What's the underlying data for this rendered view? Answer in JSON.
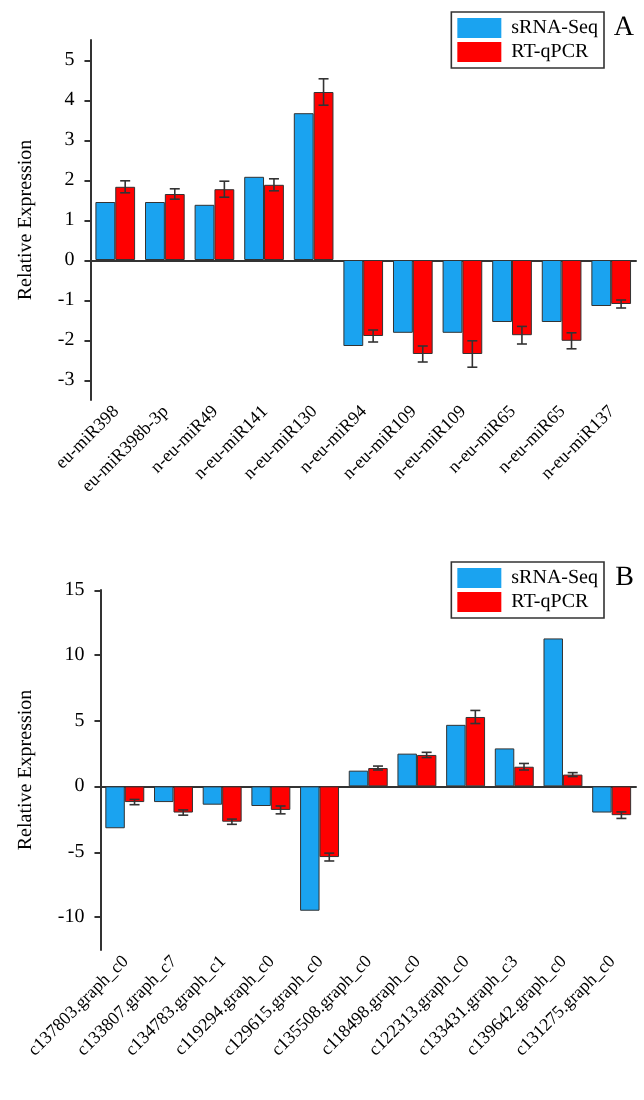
{
  "chart_data": [
    {
      "type": "bar",
      "title": "A",
      "ylabel": "Relative Expression",
      "categories": [
        "eu-miR398",
        "eu-miR398b-3p",
        "n-eu-miR49",
        "n-eu-miR141",
        "n-eu-miR130",
        "n-eu-miR94",
        "n-eu-miR109",
        "n-eu-miR109",
        "n-eu-miR65",
        "n-eu-miR65",
        "n-eu-miR137"
      ],
      "series": [
        {
          "name": "sRNA-Seq",
          "color": "#1aa3f0",
          "values": [
            1.45,
            1.45,
            1.38,
            2.08,
            3.67,
            -2.15,
            -1.82,
            -1.82,
            -1.55,
            -1.55,
            -1.15
          ]
        },
        {
          "name": "RT-qPCR",
          "color": "#ff0000",
          "values": [
            1.83,
            1.65,
            1.77,
            1.88,
            4.2,
            -1.9,
            -2.35,
            -2.35,
            -1.88,
            -2.02,
            -1.1
          ],
          "errors": [
            0.15,
            0.13,
            0.2,
            0.15,
            0.33,
            0.15,
            0.2,
            0.33,
            0.22,
            0.2,
            0.1
          ]
        }
      ],
      "ylim": [
        -3.5,
        5.5
      ],
      "yticks": [
        -3,
        -2,
        -1,
        0,
        1,
        2,
        3,
        4,
        5
      ],
      "legend": "top right"
    },
    {
      "type": "bar",
      "title": "B",
      "ylabel": "Relative Expression",
      "categories": [
        "c137803.graph_c0",
        "c133807.graph_c7",
        "c134783.graph_c1",
        "c119294.graph_c0",
        "c129615.graph_c0",
        "c135508.graph_c0",
        "c118498.graph_c0",
        "c122313.graph_c0",
        "c133431.graph_c3",
        "c139642.graph_c0",
        "c131275.graph_c0"
      ],
      "series": [
        {
          "name": "sRNA-Seq",
          "color": "#1aa3f0",
          "values": [
            -3.2,
            -1.2,
            -1.4,
            -1.5,
            -9.5,
            1.2,
            2.5,
            4.7,
            2.9,
            11.3,
            -2.0
          ]
        },
        {
          "name": "RT-qPCR",
          "color": "#ff0000",
          "values": [
            -1.2,
            -2.0,
            -2.7,
            -1.8,
            -5.4,
            1.4,
            2.4,
            5.3,
            1.5,
            0.9,
            -2.2
          ],
          "errors": [
            0.2,
            0.2,
            0.2,
            0.3,
            0.3,
            0.15,
            0.2,
            0.5,
            0.25,
            0.15,
            0.25
          ]
        }
      ],
      "ylim": [
        -12.5,
        15
      ],
      "yticks": [
        -10,
        -5,
        0,
        5,
        10,
        15
      ],
      "legend": "top right"
    }
  ]
}
